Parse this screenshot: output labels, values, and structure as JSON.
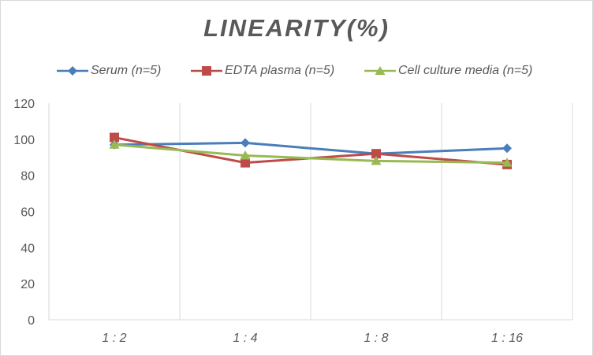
{
  "chart_data": {
    "type": "line",
    "title": "LINEARITY(%)",
    "xlabel": "",
    "ylabel": "",
    "categories": [
      "1:2",
      "1:4",
      "1:8",
      "1:16"
    ],
    "ylim": [
      0,
      120
    ],
    "yticks": [
      0,
      20,
      40,
      60,
      80,
      100,
      120
    ],
    "grid": "vertical",
    "legend_position": "top",
    "series": [
      {
        "name": "Serum (n=5)",
        "values": [
          97,
          98,
          92,
          95
        ],
        "color": "#4a7ebb",
        "marker": "diamond"
      },
      {
        "name": "EDTA plasma (n=5)",
        "values": [
          101,
          87,
          92,
          86
        ],
        "color": "#be4b48",
        "marker": "square"
      },
      {
        "name": "Cell culture media (n=5)",
        "values": [
          97,
          91,
          88,
          87
        ],
        "color": "#98b954",
        "marker": "triangle"
      }
    ]
  }
}
